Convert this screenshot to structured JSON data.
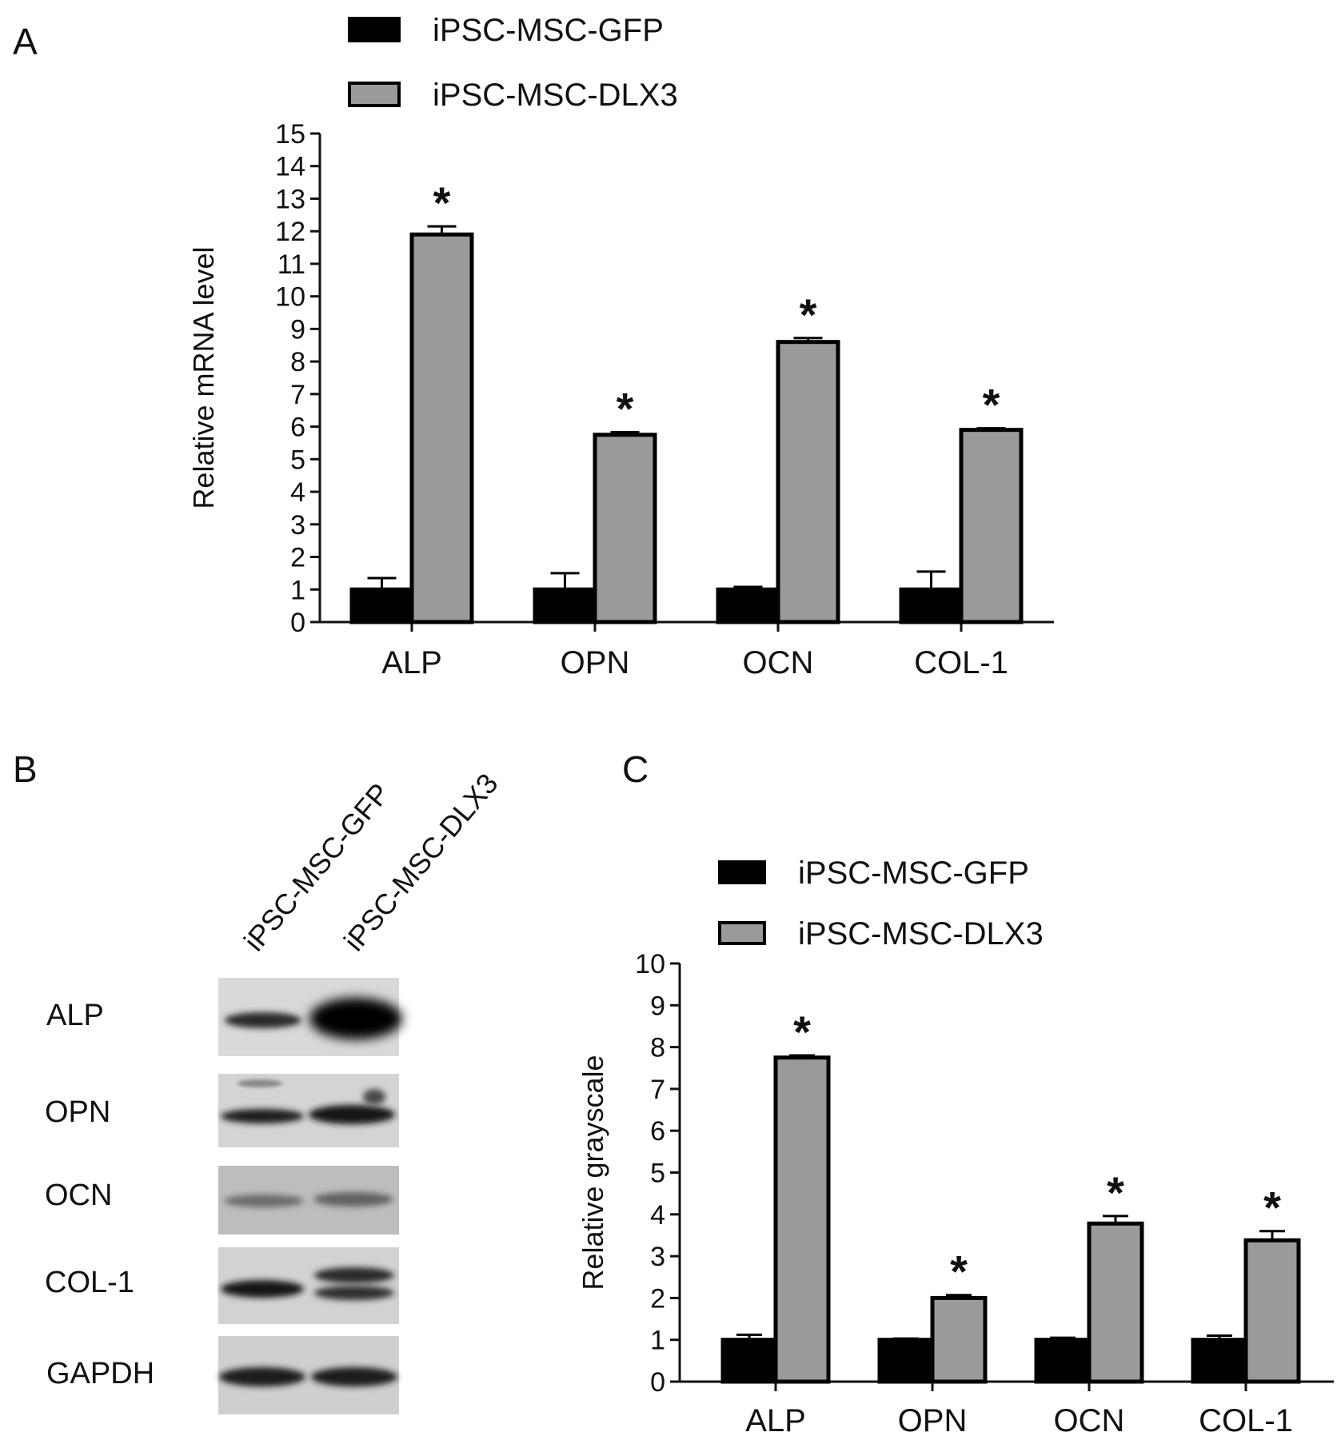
{
  "panels": {
    "a": "A",
    "b": "B",
    "c": "C"
  },
  "colors": {
    "gfp": "#000000",
    "dlx3": "#9a9a9a",
    "axis": "#111111"
  },
  "chart_data": [
    {
      "type": "bar",
      "panel": "A",
      "ylabel": "Relative mRNA level",
      "ylim": [
        0,
        15
      ],
      "yticks": [
        0,
        1,
        2,
        3,
        4,
        5,
        6,
        7,
        8,
        9,
        10,
        11,
        12,
        13,
        14,
        15
      ],
      "categories": [
        "ALP",
        "OPN",
        "OCN",
        "COL-1"
      ],
      "series": [
        {
          "name": "iPSC-MSC-GFP",
          "values": [
            1.0,
            1.0,
            1.0,
            1.0
          ],
          "errors": [
            0.35,
            0.5,
            0.08,
            0.55
          ]
        },
        {
          "name": "iPSC-MSC-DLX3",
          "values": [
            11.9,
            5.75,
            8.6,
            5.9
          ],
          "errors": [
            0.25,
            0.08,
            0.12,
            0.05
          ]
        }
      ],
      "significance": [
        "*",
        "*",
        "*",
        "*"
      ],
      "legend_position": "top"
    },
    {
      "type": "bar",
      "panel": "C",
      "ylabel": "Relative grayscale",
      "ylim": [
        0,
        10
      ],
      "yticks": [
        0,
        1,
        2,
        3,
        4,
        5,
        6,
        7,
        8,
        9,
        10
      ],
      "categories": [
        "ALP",
        "OPN",
        "OCN",
        "COL-1"
      ],
      "series": [
        {
          "name": "iPSC-MSC-GFP",
          "values": [
            1.0,
            1.0,
            1.0,
            1.0
          ],
          "errors": [
            0.12,
            0.03,
            0.05,
            0.1
          ]
        },
        {
          "name": "iPSC-MSC-DLX3",
          "values": [
            7.75,
            2.0,
            3.78,
            3.38
          ],
          "errors": [
            0.05,
            0.07,
            0.18,
            0.22
          ]
        }
      ],
      "significance": [
        "*",
        "*",
        "*",
        "*"
      ],
      "legend_position": "top"
    }
  ],
  "western_blot": {
    "lanes": [
      "iPSC-MSC-GFP",
      "iPSC-MSC-DLX3"
    ],
    "rows": [
      "ALP",
      "OPN",
      "OCN",
      "COL-1",
      "GAPDH"
    ]
  }
}
